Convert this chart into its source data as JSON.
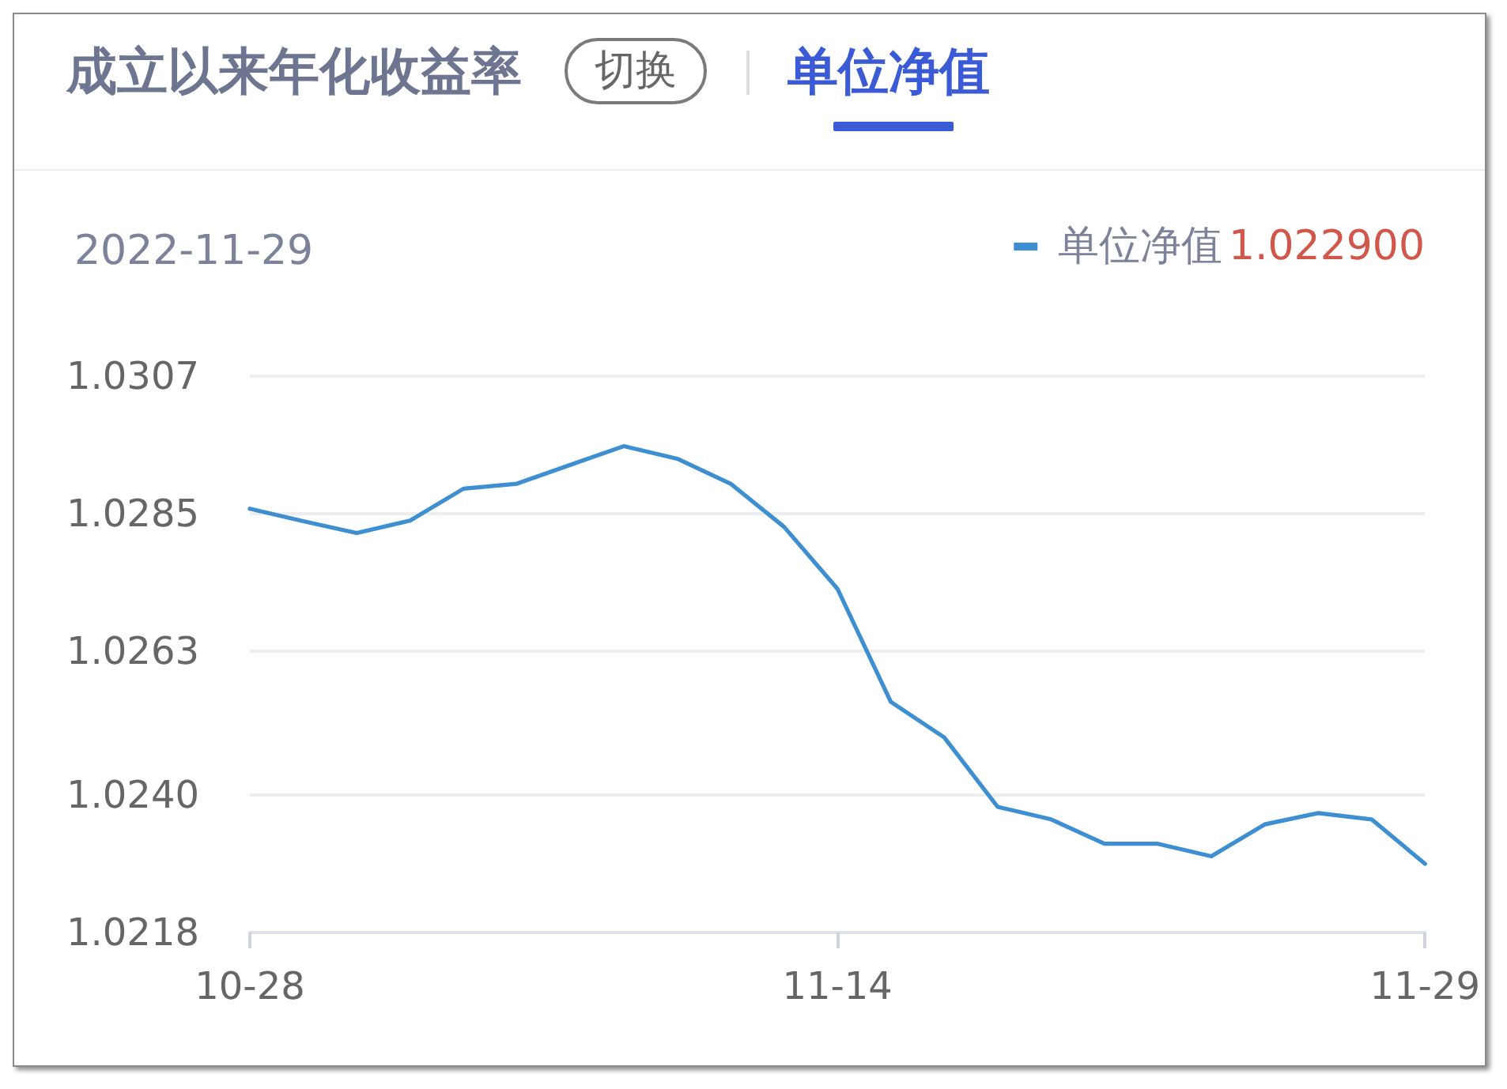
{
  "chart_data": {
    "type": "line",
    "title": "单位净值",
    "subtitle": "2022-11-29",
    "annotations": [
      "成立以来年化收益率",
      "切换",
      "1.022900"
    ],
    "categories": [
      "10-28",
      null,
      null,
      null,
      null,
      null,
      null,
      null,
      null,
      null,
      null,
      "11-14",
      null,
      null,
      null,
      null,
      null,
      null,
      null,
      null,
      null,
      null,
      "11-29"
    ],
    "series": [
      {
        "name": "单位净值",
        "color": "#3d8fd1",
        "values": [
          1.02858,
          1.02838,
          1.02819,
          1.02839,
          1.0289,
          1.02898,
          1.02928,
          1.02958,
          1.02938,
          1.02898,
          1.02829,
          1.0273,
          1.02549,
          1.02492,
          1.02381,
          1.02361,
          1.02322,
          1.02322,
          1.02302,
          1.02353,
          1.02371,
          1.02361,
          1.0229
        ]
      }
    ],
    "ylim": [
      1.0218,
      1.0307
    ],
    "yticks": [
      1.0218,
      {
        "value": 1.024,
        "label": "1.0240"
      },
      1.0263,
      1.0285,
      1.0307
    ],
    "grid": "y",
    "legend": "top right",
    "marker": "none"
  }
}
